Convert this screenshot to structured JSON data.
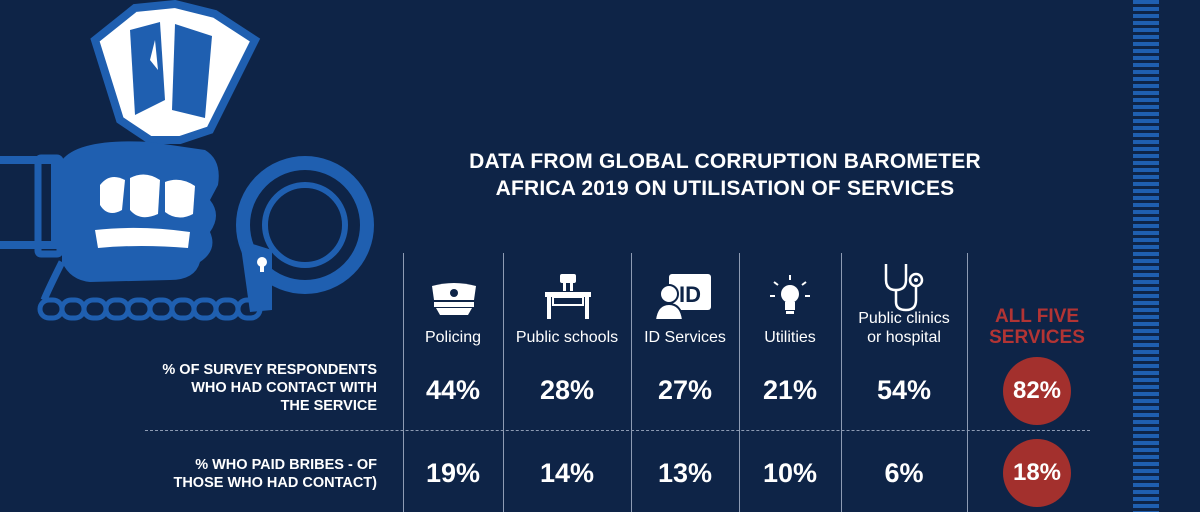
{
  "title": {
    "line1": "DATA FROM GLOBAL CORRUPTION BAROMETER",
    "line2": "AFRICA 2019 ON UTILISATION OF SERVICES"
  },
  "columns": [
    {
      "label": "Policing",
      "icon": "police-cap-icon"
    },
    {
      "label": "Public schools",
      "icon": "school-desk-icon"
    },
    {
      "label": "ID Services",
      "icon": "id-card-icon"
    },
    {
      "label": "Utilities",
      "icon": "lightbulb-icon"
    },
    {
      "label_line1": "Public clinics",
      "label_line2": "or hospital",
      "icon": "stethoscope-icon"
    }
  ],
  "all_services": {
    "line1": "ALL FIVE",
    "line2": "SERVICES"
  },
  "rows": [
    {
      "label_line1": "% OF SURVEY RESPONDENTS",
      "label_line2": "WHO HAD CONTACT WITH",
      "label_line3": "THE SERVICE",
      "values": [
        "44%",
        "28%",
        "27%",
        "21%",
        "54%"
      ],
      "total": "82%"
    },
    {
      "label_line1": "% WHO PAID BRIBES - OF",
      "label_line2": "THOSE WHO HAD CONTACT)",
      "values": [
        "19%",
        "14%",
        "13%",
        "10%",
        "6%"
      ],
      "total": "18%"
    }
  ],
  "colors": {
    "background": "#0e2447",
    "accent_blue": "#1f5fb0",
    "highlight_red": "#a3302d"
  },
  "illustration": "handcuffed-hand-holding-money-icon"
}
